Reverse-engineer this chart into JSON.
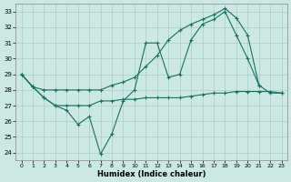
{
  "xlabel": "Humidex (Indice chaleur)",
  "background_color": "#cce8e2",
  "grid_color": "#aacfc8",
  "line_color": "#1a7060",
  "xlim": [
    -0.5,
    23.5
  ],
  "ylim": [
    23.5,
    33.5
  ],
  "xticks": [
    0,
    1,
    2,
    3,
    4,
    5,
    6,
    7,
    8,
    9,
    10,
    11,
    12,
    13,
    14,
    15,
    16,
    17,
    18,
    19,
    20,
    21,
    22,
    23
  ],
  "yticks": [
    24,
    25,
    26,
    27,
    28,
    29,
    30,
    31,
    32,
    33
  ],
  "series": [
    {
      "x": [
        0,
        1,
        2,
        3,
        4,
        5,
        6,
        7,
        8,
        9,
        10,
        11,
        12,
        13,
        14,
        15,
        16,
        17,
        18,
        19,
        20,
        21,
        22,
        23
      ],
      "y": [
        29,
        28.2,
        27.5,
        27.0,
        27.0,
        27.0,
        27.0,
        27.3,
        27.3,
        27.4,
        27.4,
        27.5,
        27.5,
        27.5,
        27.5,
        27.6,
        27.7,
        27.8,
        27.8,
        27.9,
        27.9,
        27.9,
        27.9,
        27.8
      ]
    },
    {
      "x": [
        0,
        1,
        2,
        3,
        4,
        5,
        6,
        7,
        8,
        9,
        10,
        11,
        12,
        13,
        14,
        15,
        16,
        17,
        18,
        19,
        20,
        21
      ],
      "y": [
        29,
        28.2,
        27.5,
        27.0,
        26.7,
        25.8,
        26.3,
        23.9,
        25.2,
        27.3,
        28.0,
        31.0,
        31.0,
        28.8,
        29.0,
        31.2,
        32.2,
        32.5,
        33.0,
        31.5,
        30.0,
        28.3
      ]
    },
    {
      "x": [
        0,
        1,
        2,
        3,
        4,
        5,
        6,
        7,
        8,
        9,
        10,
        11,
        12,
        13,
        14,
        15,
        16,
        17,
        18,
        19,
        20,
        21,
        22,
        23
      ],
      "y": [
        29,
        28.2,
        28.0,
        28.0,
        28.0,
        28.0,
        28.0,
        28.0,
        28.3,
        28.5,
        28.8,
        29.5,
        30.2,
        31.2,
        31.8,
        32.2,
        32.5,
        32.8,
        33.2,
        32.6,
        31.5,
        28.3,
        27.8,
        27.8
      ]
    }
  ]
}
